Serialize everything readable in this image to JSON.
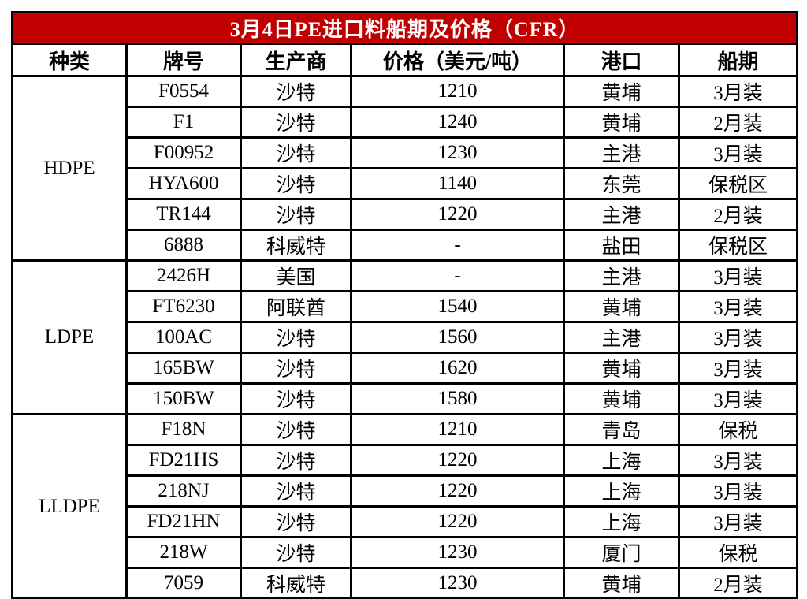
{
  "table": {
    "title": "3月4日PE进口料船期及价格（CFR）",
    "headers": [
      "种类",
      "牌号",
      "生产商",
      "价格（美元/吨）",
      "港口",
      "船期"
    ],
    "groups": [
      {
        "type": "HDPE",
        "rows": [
          {
            "grade": "F0554",
            "producer": "沙特",
            "price": "1210",
            "port": "黄埔",
            "shipment": "3月装"
          },
          {
            "grade": "F1",
            "producer": "沙特",
            "price": "1240",
            "port": "黄埔",
            "shipment": "2月装"
          },
          {
            "grade": "F00952",
            "producer": "沙特",
            "price": "1230",
            "port": "主港",
            "shipment": "3月装"
          },
          {
            "grade": "HYA600",
            "producer": "沙特",
            "price": "1140",
            "port": "东莞",
            "shipment": "保税区"
          },
          {
            "grade": "TR144",
            "producer": "沙特",
            "price": "1220",
            "port": "主港",
            "shipment": "2月装"
          },
          {
            "grade": "6888",
            "producer": "科威特",
            "price": "-",
            "port": "盐田",
            "shipment": "保税区"
          }
        ]
      },
      {
        "type": "LDPE",
        "rows": [
          {
            "grade": "2426H",
            "producer": "美国",
            "price": "-",
            "port": "主港",
            "shipment": "3月装"
          },
          {
            "grade": "FT6230",
            "producer": "阿联酋",
            "price": "1540",
            "port": "黄埔",
            "shipment": "3月装"
          },
          {
            "grade": "100AC",
            "producer": "沙特",
            "price": "1560",
            "port": "主港",
            "shipment": "3月装"
          },
          {
            "grade": "165BW",
            "producer": "沙特",
            "price": "1620",
            "port": "黄埔",
            "shipment": "3月装"
          },
          {
            "grade": "150BW",
            "producer": "沙特",
            "price": "1580",
            "port": "黄埔",
            "shipment": "3月装"
          }
        ]
      },
      {
        "type": "LLDPE",
        "rows": [
          {
            "grade": "F18N",
            "producer": "沙特",
            "price": "1210",
            "port": "青岛",
            "shipment": "保税"
          },
          {
            "grade": "FD21HS",
            "producer": "沙特",
            "price": "1220",
            "port": "上海",
            "shipment": "3月装"
          },
          {
            "grade": "218NJ",
            "producer": "沙特",
            "price": "1220",
            "port": "上海",
            "shipment": "3月装"
          },
          {
            "grade": "FD21HN",
            "producer": "沙特",
            "price": "1220",
            "port": "上海",
            "shipment": "3月装"
          },
          {
            "grade": "218W",
            "producer": "沙特",
            "price": "1230",
            "port": "厦门",
            "shipment": "保税"
          },
          {
            "grade": "7059",
            "producer": "科威特",
            "price": "1230",
            "port": "黄埔",
            "shipment": "2月装"
          }
        ]
      }
    ],
    "colors": {
      "title_bg": "#c00000",
      "title_text": "#ffffff",
      "border": "#000000",
      "cell_bg": "#ffffff",
      "cell_text": "#000000"
    }
  },
  "chart_data": {
    "type": "table",
    "title": "3月4日PE进口料船期及价格（CFR）",
    "columns": [
      "种类",
      "牌号",
      "生产商",
      "价格（美元/吨）",
      "港口",
      "船期"
    ],
    "rows": [
      [
        "HDPE",
        "F0554",
        "沙特",
        "1210",
        "黄埔",
        "3月装"
      ],
      [
        "HDPE",
        "F1",
        "沙特",
        "1240",
        "黄埔",
        "2月装"
      ],
      [
        "HDPE",
        "F00952",
        "沙特",
        "1230",
        "主港",
        "3月装"
      ],
      [
        "HDPE",
        "HYA600",
        "沙特",
        "1140",
        "东莞",
        "保税区"
      ],
      [
        "HDPE",
        "TR144",
        "沙特",
        "1220",
        "主港",
        "2月装"
      ],
      [
        "HDPE",
        "6888",
        "科威特",
        "-",
        "盐田",
        "保税区"
      ],
      [
        "LDPE",
        "2426H",
        "美国",
        "-",
        "主港",
        "3月装"
      ],
      [
        "LDPE",
        "FT6230",
        "阿联酋",
        "1540",
        "黄埔",
        "3月装"
      ],
      [
        "LDPE",
        "100AC",
        "沙特",
        "1560",
        "主港",
        "3月装"
      ],
      [
        "LDPE",
        "165BW",
        "沙特",
        "1620",
        "黄埔",
        "3月装"
      ],
      [
        "LDPE",
        "150BW",
        "沙特",
        "1580",
        "黄埔",
        "3月装"
      ],
      [
        "LLDPE",
        "F18N",
        "沙特",
        "1210",
        "青岛",
        "保税"
      ],
      [
        "LLDPE",
        "FD21HS",
        "沙特",
        "1220",
        "上海",
        "3月装"
      ],
      [
        "LLDPE",
        "218NJ",
        "沙特",
        "1220",
        "上海",
        "3月装"
      ],
      [
        "LLDPE",
        "FD21HN",
        "沙特",
        "1220",
        "上海",
        "3月装"
      ],
      [
        "LLDPE",
        "218W",
        "沙特",
        "1230",
        "厦门",
        "保税"
      ],
      [
        "LLDPE",
        "7059",
        "科威特",
        "1230",
        "黄埔",
        "2月装"
      ]
    ]
  }
}
